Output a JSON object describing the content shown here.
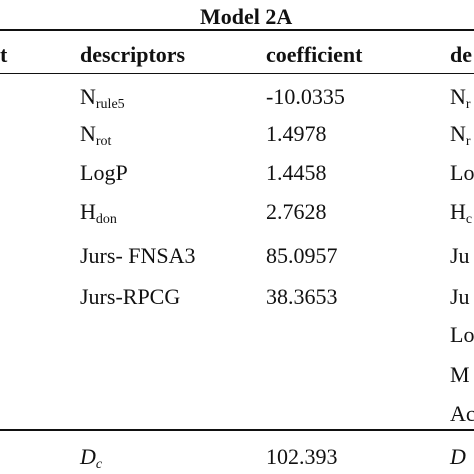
{
  "table": {
    "title": "Model 2A",
    "headers": {
      "left_cut": "t",
      "descriptors": "descriptors",
      "coefficient": "coefficient",
      "right_cut": "de"
    },
    "rows": [
      {
        "desc_main": "N",
        "desc_sub": "rule5",
        "coef": "-10.0335",
        "right_main": "N",
        "right_sub": "r"
      },
      {
        "desc_main": "N",
        "desc_sub": "rot",
        "coef": "1.4978",
        "right_main": "N",
        "right_sub": "r"
      },
      {
        "desc_main": "LogP",
        "desc_sub": "",
        "coef": "1.4458",
        "right_main": "Lo",
        "right_sub": ""
      },
      {
        "desc_main": "H",
        "desc_sub": "don",
        "coef": "2.7628",
        "right_main": "H",
        "right_sub": "c"
      },
      {
        "desc_main": "Jurs- FNSA3",
        "desc_sub": "",
        "coef": "85.0957",
        "right_main": "Ju",
        "right_sub": ""
      },
      {
        "desc_main": "Jurs-RPCG",
        "desc_sub": "",
        "coef": "38.3653",
        "right_main": "Ju",
        "right_sub": ""
      },
      {
        "desc_main": "",
        "desc_sub": "",
        "coef": "",
        "right_main": "Lo",
        "right_sub": ""
      },
      {
        "desc_main": "",
        "desc_sub": "",
        "coef": "",
        "right_main": "M",
        "right_sub": ""
      },
      {
        "desc_main": "",
        "desc_sub": "",
        "coef": "",
        "right_main": "Ac",
        "right_sub": ""
      }
    ],
    "footer": {
      "desc_main": "D",
      "desc_sub": "c",
      "coef": "102.393",
      "right_main": "D",
      "right_sub": ""
    }
  }
}
